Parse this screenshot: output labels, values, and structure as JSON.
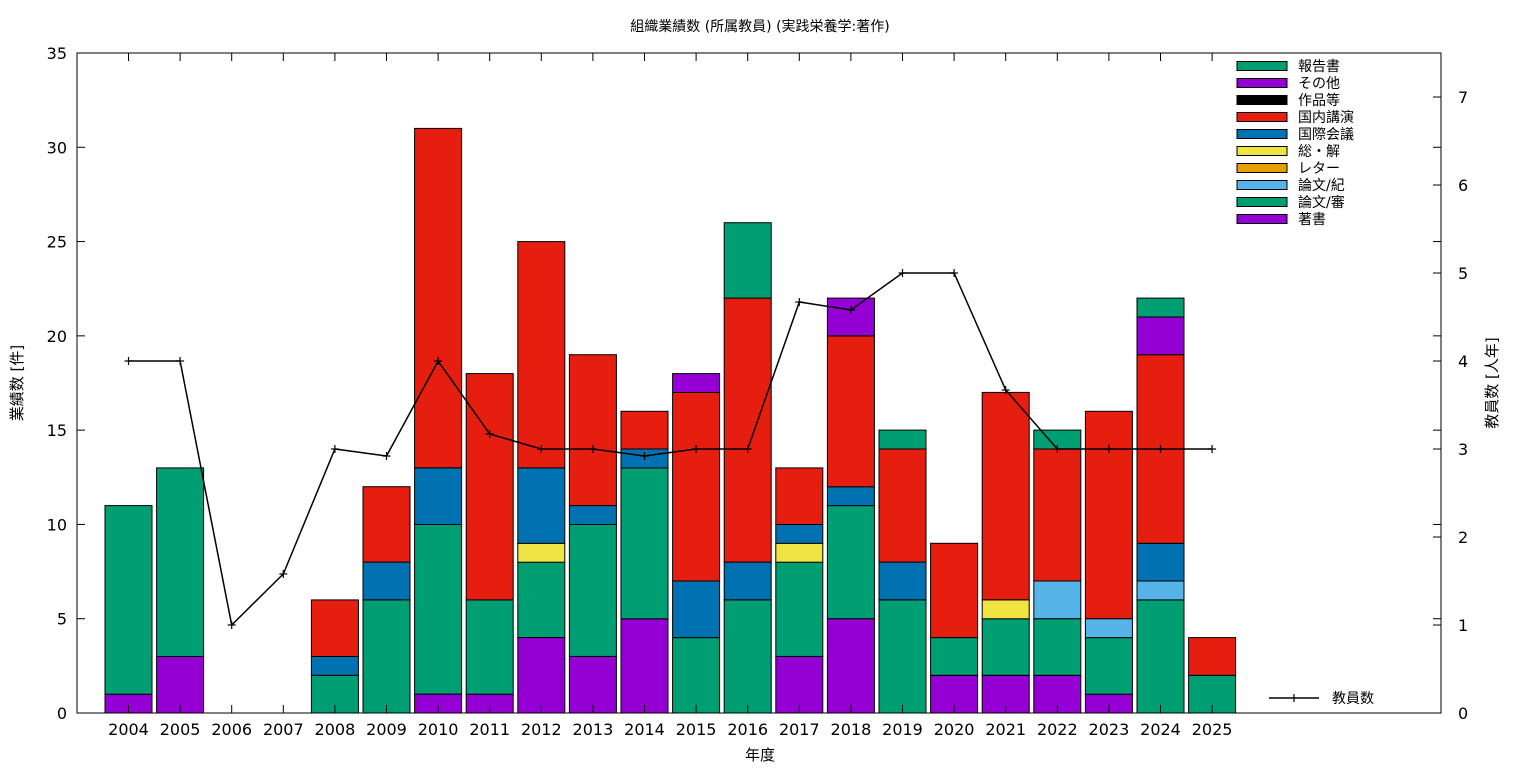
{
  "chart_data": {
    "type": "bar",
    "title": "組織業績数 (所属教員) (実践栄養学:著作)",
    "xlabel": "年度",
    "ylabel": "業績数 [件]",
    "y2label": "教員数 [人年]",
    "ylim": [
      0,
      35
    ],
    "y2lim": [
      0,
      7.5
    ],
    "yticks": [
      0,
      5,
      10,
      15,
      20,
      25,
      30,
      35
    ],
    "y2ticks": [
      0,
      1,
      2,
      3,
      4,
      5,
      6,
      7
    ],
    "stacked": true,
    "grid": false,
    "legend_position": "top-right",
    "categories": [
      "2004",
      "2005",
      "2006",
      "2007",
      "2008",
      "2009",
      "2010",
      "2011",
      "2012",
      "2013",
      "2014",
      "2015",
      "2016",
      "2017",
      "2018",
      "2019",
      "2020",
      "2021",
      "2022",
      "2023",
      "2024",
      "2025"
    ],
    "series": [
      {
        "name": "著書",
        "color": "#9400d3",
        "values": [
          1,
          3,
          0,
          0,
          0,
          0,
          1,
          1,
          4,
          3,
          5,
          0,
          0,
          3,
          5,
          0,
          2,
          2,
          2,
          1,
          0,
          0
        ]
      },
      {
        "name": "論文/審",
        "color": "#009e73",
        "values": [
          10,
          10,
          0,
          0,
          2,
          6,
          9,
          5,
          4,
          7,
          8,
          4,
          6,
          5,
          6,
          6,
          2,
          3,
          3,
          3,
          6,
          2
        ]
      },
      {
        "name": "論文/紀",
        "color": "#56b4e9",
        "values": [
          0,
          0,
          0,
          0,
          0,
          0,
          0,
          0,
          0,
          0,
          0,
          0,
          0,
          0,
          0,
          0,
          0,
          0,
          2,
          1,
          1,
          0
        ]
      },
      {
        "name": "レター",
        "color": "#e69f00",
        "values": [
          0,
          0,
          0,
          0,
          0,
          0,
          0,
          0,
          0,
          0,
          0,
          0,
          0,
          0,
          0,
          0,
          0,
          0,
          0,
          0,
          0,
          0
        ]
      },
      {
        "name": "総・解",
        "color": "#f0e442",
        "values": [
          0,
          0,
          0,
          0,
          0,
          0,
          0,
          0,
          1,
          0,
          0,
          0,
          0,
          1,
          0,
          0,
          0,
          1,
          0,
          0,
          0,
          0
        ]
      },
      {
        "name": "国際会議",
        "color": "#0072b2",
        "values": [
          0,
          0,
          0,
          0,
          1,
          2,
          3,
          0,
          4,
          1,
          1,
          3,
          2,
          1,
          1,
          2,
          0,
          0,
          0,
          0,
          2,
          0
        ]
      },
      {
        "name": "国内講演",
        "color": "#e51e10",
        "values": [
          0,
          0,
          0,
          0,
          3,
          4,
          18,
          12,
          12,
          8,
          2,
          10,
          14,
          3,
          8,
          6,
          5,
          11,
          7,
          11,
          10,
          2
        ]
      },
      {
        "name": "作品等",
        "color": "#000000",
        "values": [
          0,
          0,
          0,
          0,
          0,
          0,
          0,
          0,
          0,
          0,
          0,
          0,
          0,
          0,
          0,
          0,
          0,
          0,
          0,
          0,
          0,
          0
        ]
      },
      {
        "name": "その他",
        "color": "#9400d3",
        "values": [
          0,
          0,
          0,
          0,
          0,
          0,
          0,
          0,
          0,
          0,
          0,
          1,
          0,
          0,
          2,
          0,
          0,
          0,
          0,
          0,
          2,
          0
        ]
      },
      {
        "name": "報告書",
        "color": "#009e73",
        "values": [
          0,
          0,
          0,
          0,
          0,
          0,
          0,
          0,
          0,
          0,
          0,
          0,
          4,
          0,
          0,
          1,
          0,
          0,
          1,
          0,
          1,
          0
        ]
      }
    ],
    "legend_order": [
      "報告書",
      "その他",
      "作品等",
      "国内講演",
      "国際会議",
      "総・解",
      "レター",
      "論文/紀",
      "論文/審",
      "著書"
    ],
    "line_series": {
      "name": "教員数",
      "axis": "y2",
      "color": "#000000",
      "values": [
        4,
        4,
        1,
        1.58,
        3,
        2.92,
        4,
        3.17,
        3,
        3,
        2.92,
        3,
        3,
        4.67,
        4.58,
        5,
        5,
        3.67,
        3,
        3,
        3,
        3
      ]
    }
  }
}
